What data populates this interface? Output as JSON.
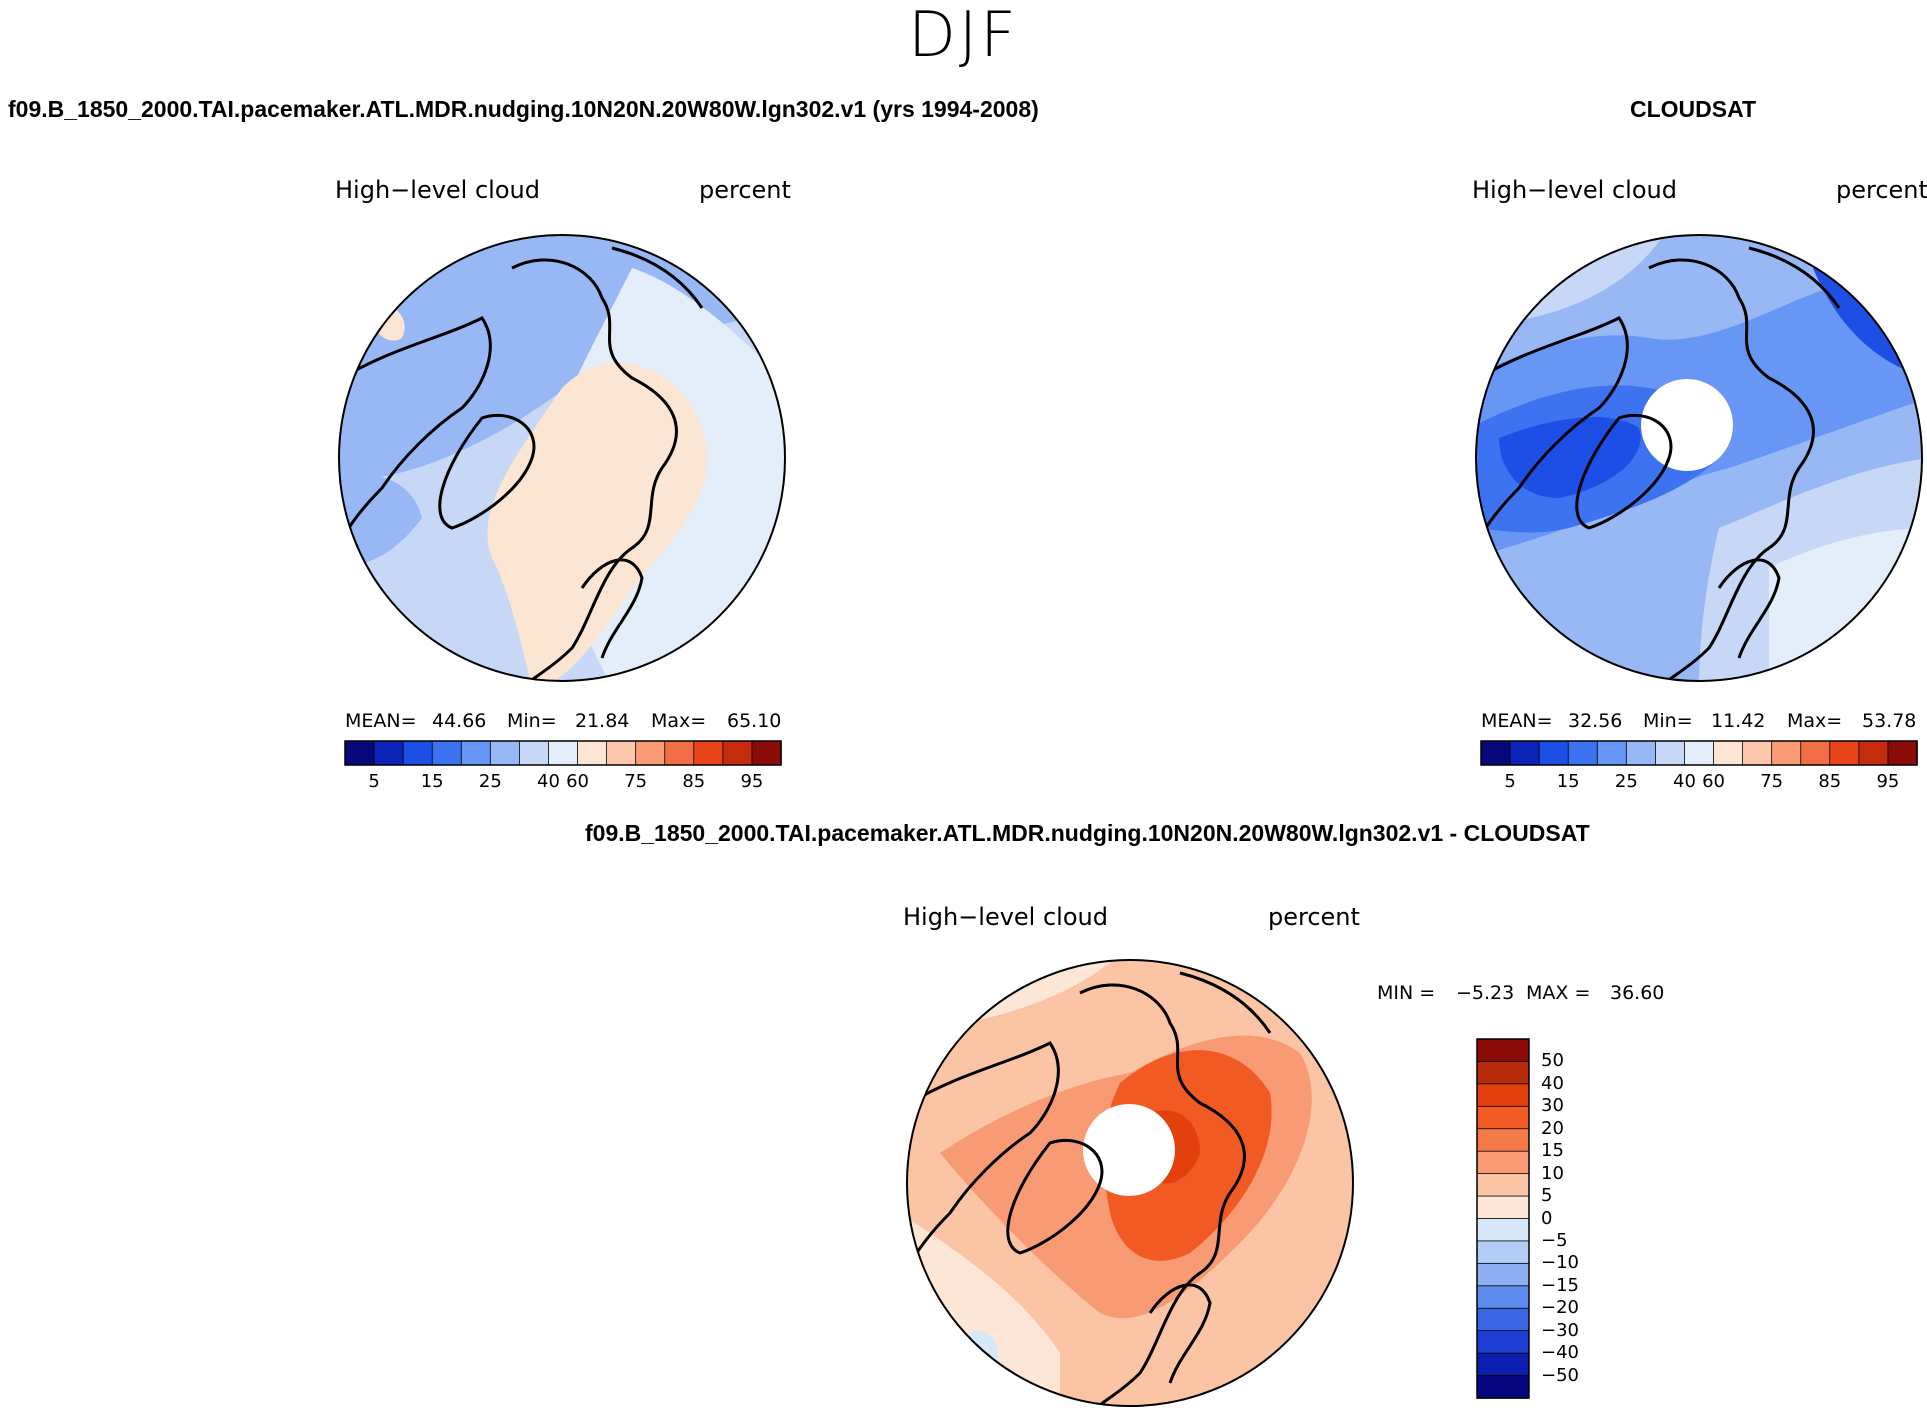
{
  "page": {
    "title": "DJF"
  },
  "panels": [
    {
      "case_title": "f09.B_1850_2000.TAI.pacemaker.ATL.MDR.nudging.10N20N.20W80W.lgn302.v1 (yrs 1994-2008)",
      "left_label": "High−level cloud",
      "right_label": "percent",
      "mean_label": "MEAN=",
      "mean": "44.66",
      "min_label": "Min=",
      "min": "21.84",
      "max_label": "Max=",
      "max": "65.10"
    },
    {
      "case_title": "CLOUDSAT",
      "left_label": "High−level cloud",
      "right_label": "percent",
      "mean_label": "MEAN=",
      "mean": "32.56",
      "min_label": "Min=",
      "min": "11.42",
      "max_label": "Max=",
      "max": "53.78"
    }
  ],
  "diff_panel": {
    "case_title": "f09.B_1850_2000.TAI.pacemaker.ATL.MDR.nudging.10N20N.20W80W.lgn302.v1 - CLOUDSAT",
    "left_label": "High−level cloud",
    "right_label": "percent",
    "min_label": "MIN =",
    "min": "−5.23",
    "max_label": "MAX =",
    "max": "36.60"
  },
  "chart_data": [
    {
      "type": "heatmap",
      "projection": "north polar stereographic",
      "title": "High-level cloud",
      "units": "percent",
      "stats": {
        "mean": 44.66,
        "min": 21.84,
        "max": 65.1
      },
      "dominant_range": [
        35,
        60
      ],
      "colorbar_ticks": [
        "5",
        "15",
        "25",
        "40",
        "60",
        "75",
        "85",
        "95"
      ]
    },
    {
      "type": "heatmap",
      "projection": "north polar stereographic",
      "title": "High-level cloud",
      "units": "percent",
      "stats": {
        "mean": 32.56,
        "min": 11.42,
        "max": 53.78
      },
      "dominant_range": [
        10,
        45
      ],
      "missing_data": "polar cap",
      "colorbar_ticks": [
        "5",
        "15",
        "25",
        "40",
        "60",
        "75",
        "85",
        "95"
      ]
    },
    {
      "type": "heatmap",
      "projection": "north polar stereographic",
      "title": "High-level cloud difference",
      "units": "percent",
      "stats": {
        "min": -5.23,
        "max": 36.6
      },
      "dominant_range": [
        0,
        30
      ],
      "missing_data": "polar cap",
      "colorbar_ticks": [
        "50",
        "40",
        "30",
        "20",
        "15",
        "10",
        "5",
        "0",
        "−5",
        "−10",
        "−15",
        "−20",
        "−30",
        "−40",
        "−50"
      ]
    }
  ],
  "colors": {
    "abs_scale": [
      "#08087d",
      "#0c24b8",
      "#1d4fe6",
      "#3d73f0",
      "#6796f4",
      "#98b7f5",
      "#c6d8f6",
      "#e4eefb",
      "#fde5d4",
      "#fcc7ab",
      "#f99b76",
      "#f26d43",
      "#e84518",
      "#c52d0a",
      "#8b0b07"
    ],
    "diff_scale": [
      "#8b0b07",
      "#b72a0a",
      "#e3400e",
      "#f25a24",
      "#f47a4a",
      "#f89b75",
      "#fbc4a4",
      "#fde6d6",
      "#d6e7fa",
      "#b4cdf6",
      "#8caef1",
      "#5e8ced",
      "#3a66e6",
      "#1c3ed4",
      "#0a1fb0",
      "#06067e"
    ]
  }
}
